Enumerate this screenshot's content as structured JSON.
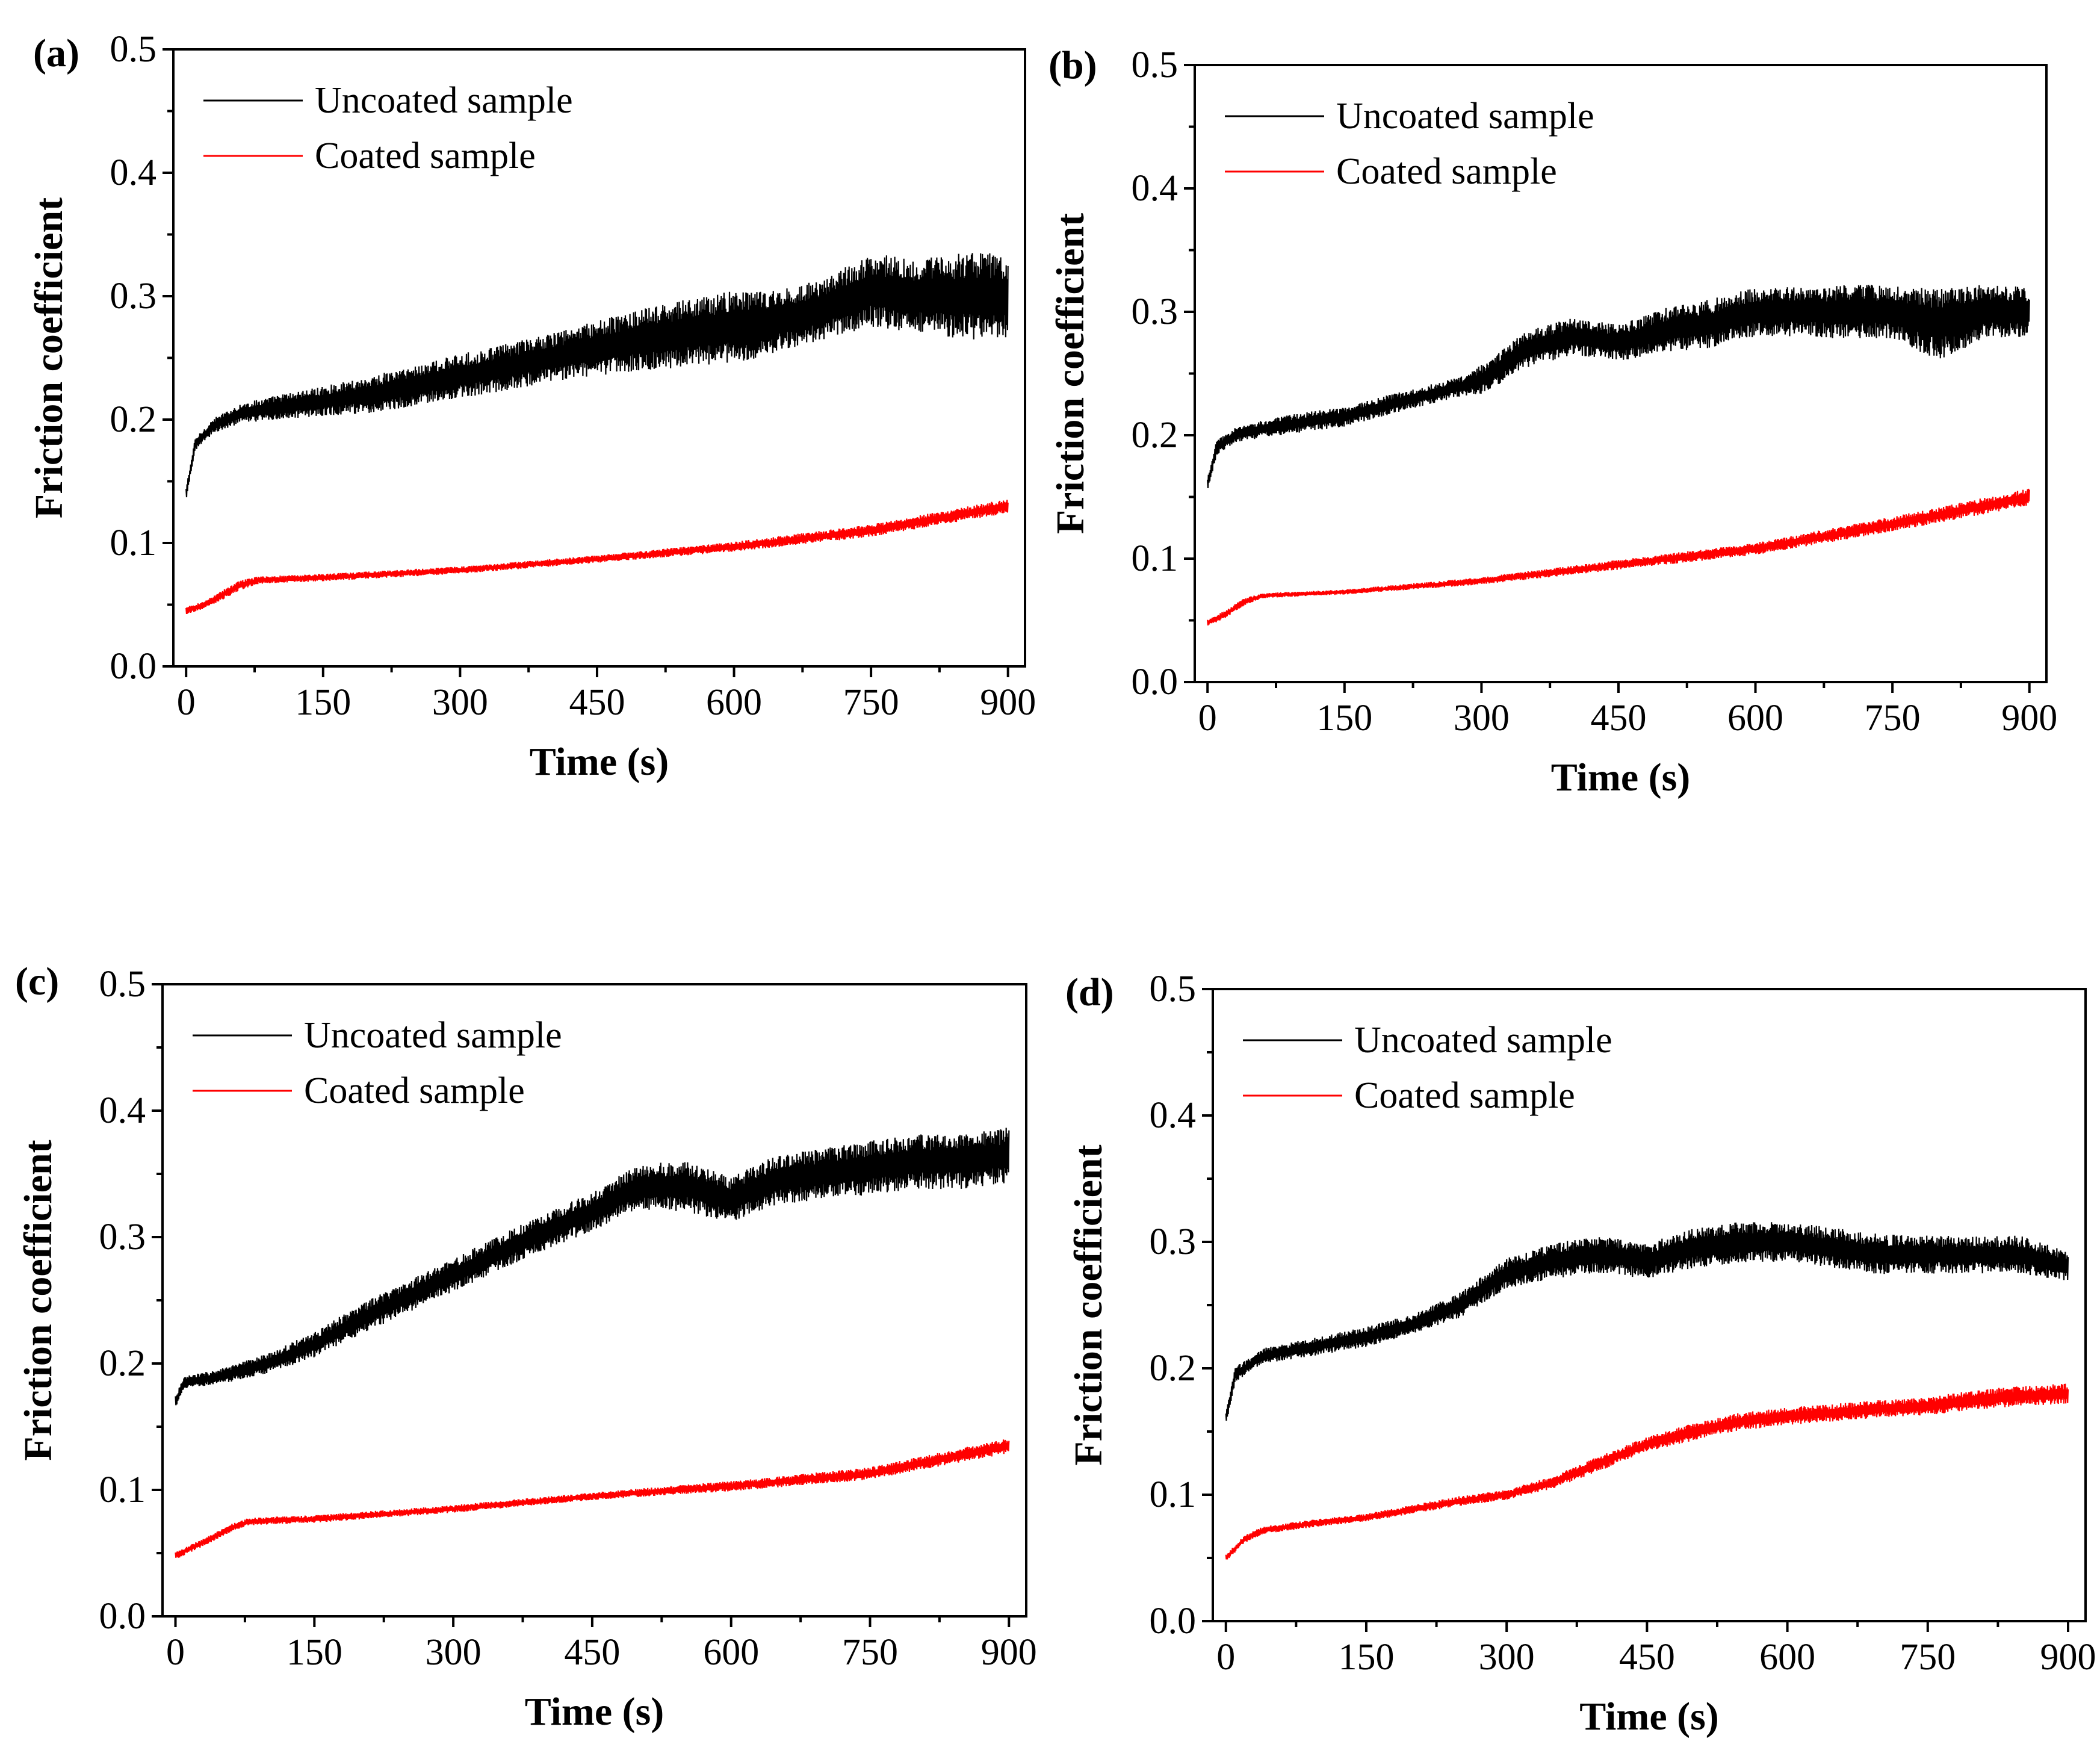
{
  "chart_data": [
    {
      "type": "line",
      "panel_label": "(a)",
      "xlabel": "Time (s)",
      "ylabel": "Friction coefficient",
      "xlim": [
        0,
        900
      ],
      "ylim": [
        0.0,
        0.5
      ],
      "xticks": [
        "0",
        "150",
        "300",
        "450",
        "600",
        "750",
        "900"
      ],
      "yticks": [
        "0.0",
        "0.1",
        "0.2",
        "0.3",
        "0.4",
        "0.5"
      ],
      "legend_position": "top-left",
      "series": [
        {
          "name": "Uncoated sample",
          "color": "#000000",
          "x": [
            0,
            10,
            30,
            60,
            100,
            150,
            200,
            300,
            400,
            500,
            600,
            650,
            700,
            750,
            800,
            850,
            900
          ],
          "y": [
            0.14,
            0.18,
            0.195,
            0.205,
            0.21,
            0.215,
            0.22,
            0.235,
            0.25,
            0.265,
            0.275,
            0.28,
            0.29,
            0.305,
            0.3,
            0.3,
            0.3
          ],
          "noise": [
            0.005,
            0.005,
            0.006,
            0.008,
            0.01,
            0.012,
            0.015,
            0.018,
            0.02,
            0.025,
            0.03,
            0.025,
            0.025,
            0.03,
            0.03,
            0.035,
            0.035
          ]
        },
        {
          "name": "Coated sample",
          "color": "#ff0000",
          "x": [
            0,
            20,
            40,
            60,
            80,
            150,
            300,
            450,
            600,
            750,
            900
          ],
          "y": [
            0.045,
            0.05,
            0.058,
            0.066,
            0.07,
            0.072,
            0.078,
            0.087,
            0.097,
            0.11,
            0.13
          ],
          "noise": [
            0.003,
            0.003,
            0.004,
            0.004,
            0.003,
            0.003,
            0.003,
            0.003,
            0.004,
            0.005,
            0.006
          ]
        }
      ]
    },
    {
      "type": "line",
      "panel_label": "(b)",
      "xlabel": "Time (s)",
      "ylabel": "Friction coefficient",
      "xlim": [
        0,
        900
      ],
      "ylim": [
        0.0,
        0.5
      ],
      "xticks": [
        "0",
        "150",
        "300",
        "450",
        "600",
        "750",
        "900"
      ],
      "yticks": [
        "0.0",
        "0.1",
        "0.2",
        "0.3",
        "0.4",
        "0.5"
      ],
      "legend_position": "top-left",
      "series": [
        {
          "name": "Uncoated sample",
          "color": "#000000",
          "x": [
            0,
            10,
            30,
            60,
            100,
            150,
            200,
            280,
            300,
            350,
            400,
            450,
            500,
            550,
            600,
            650,
            700,
            750,
            800,
            850,
            900
          ],
          "y": [
            0.16,
            0.19,
            0.2,
            0.205,
            0.21,
            0.215,
            0.225,
            0.24,
            0.245,
            0.27,
            0.28,
            0.275,
            0.285,
            0.29,
            0.3,
            0.3,
            0.3,
            0.3,
            0.29,
            0.3,
            0.3
          ],
          "noise": [
            0.005,
            0.006,
            0.006,
            0.007,
            0.008,
            0.008,
            0.008,
            0.008,
            0.012,
            0.015,
            0.015,
            0.015,
            0.018,
            0.02,
            0.02,
            0.02,
            0.022,
            0.022,
            0.03,
            0.022,
            0.02
          ]
        },
        {
          "name": "Coated sample",
          "color": "#ff0000",
          "x": [
            0,
            20,
            40,
            60,
            150,
            300,
            450,
            600,
            750,
            900
          ],
          "y": [
            0.048,
            0.055,
            0.065,
            0.07,
            0.073,
            0.082,
            0.095,
            0.108,
            0.128,
            0.15
          ],
          "noise": [
            0.003,
            0.003,
            0.003,
            0.002,
            0.002,
            0.003,
            0.004,
            0.005,
            0.006,
            0.007
          ]
        }
      ]
    },
    {
      "type": "line",
      "panel_label": "(c)",
      "xlabel": "Time (s)",
      "ylabel": "Friction coefficient",
      "xlim": [
        0,
        900
      ],
      "ylim": [
        0.0,
        0.5
      ],
      "xticks": [
        "0",
        "150",
        "300",
        "450",
        "600",
        "750",
        "900"
      ],
      "yticks": [
        "0.0",
        "0.1",
        "0.2",
        "0.3",
        "0.4",
        "0.5"
      ],
      "legend_position": "top-left",
      "series": [
        {
          "name": "Uncoated sample",
          "color": "#000000",
          "x": [
            0,
            10,
            50,
            100,
            150,
            200,
            300,
            400,
            450,
            500,
            550,
            600,
            650,
            700,
            750,
            800,
            850,
            900
          ],
          "y": [
            0.17,
            0.185,
            0.19,
            0.2,
            0.215,
            0.235,
            0.27,
            0.305,
            0.32,
            0.34,
            0.34,
            0.33,
            0.345,
            0.35,
            0.355,
            0.36,
            0.36,
            0.365
          ],
          "noise": [
            0.005,
            0.005,
            0.006,
            0.008,
            0.01,
            0.012,
            0.013,
            0.015,
            0.015,
            0.018,
            0.02,
            0.018,
            0.02,
            0.02,
            0.022,
            0.022,
            0.022,
            0.022
          ]
        },
        {
          "name": "Coated sample",
          "color": "#ff0000",
          "x": [
            0,
            20,
            40,
            60,
            80,
            150,
            300,
            450,
            600,
            750,
            900
          ],
          "y": [
            0.048,
            0.055,
            0.062,
            0.07,
            0.075,
            0.077,
            0.085,
            0.095,
            0.103,
            0.113,
            0.135
          ],
          "noise": [
            0.003,
            0.003,
            0.003,
            0.003,
            0.003,
            0.003,
            0.003,
            0.003,
            0.004,
            0.005,
            0.006
          ]
        }
      ]
    },
    {
      "type": "line",
      "panel_label": "(d)",
      "xlabel": "Time (s)",
      "ylabel": "Friction coefficient",
      "xlim": [
        0,
        900
      ],
      "ylim": [
        0.0,
        0.5
      ],
      "xticks": [
        "0",
        "150",
        "300",
        "450",
        "600",
        "750",
        "900"
      ],
      "yticks": [
        "0.0",
        "0.1",
        "0.2",
        "0.3",
        "0.4",
        "0.5"
      ],
      "legend_position": "top-left",
      "series": [
        {
          "name": "Uncoated sample",
          "color": "#000000",
          "x": [
            0,
            10,
            40,
            80,
            150,
            200,
            250,
            300,
            350,
            400,
            450,
            500,
            550,
            600,
            650,
            700,
            750,
            800,
            850,
            900
          ],
          "y": [
            0.16,
            0.195,
            0.21,
            0.215,
            0.225,
            0.235,
            0.25,
            0.275,
            0.285,
            0.29,
            0.285,
            0.295,
            0.3,
            0.3,
            0.295,
            0.29,
            0.29,
            0.29,
            0.29,
            0.28
          ],
          "noise": [
            0.005,
            0.006,
            0.006,
            0.007,
            0.008,
            0.008,
            0.01,
            0.012,
            0.014,
            0.015,
            0.014,
            0.016,
            0.016,
            0.016,
            0.016,
            0.016,
            0.015,
            0.015,
            0.015,
            0.012
          ]
        },
        {
          "name": "Coated sample",
          "color": "#ff0000",
          "x": [
            0,
            20,
            40,
            100,
            150,
            250,
            300,
            350,
            400,
            450,
            500,
            550,
            600,
            650,
            700,
            750,
            800,
            850,
            900
          ],
          "y": [
            0.05,
            0.065,
            0.072,
            0.078,
            0.082,
            0.095,
            0.1,
            0.11,
            0.125,
            0.14,
            0.15,
            0.158,
            0.162,
            0.165,
            0.168,
            0.17,
            0.175,
            0.178,
            0.18
          ],
          "noise": [
            0.003,
            0.003,
            0.003,
            0.003,
            0.003,
            0.004,
            0.004,
            0.005,
            0.006,
            0.006,
            0.007,
            0.007,
            0.007,
            0.007,
            0.007,
            0.007,
            0.008,
            0.008,
            0.008
          ]
        }
      ]
    }
  ]
}
